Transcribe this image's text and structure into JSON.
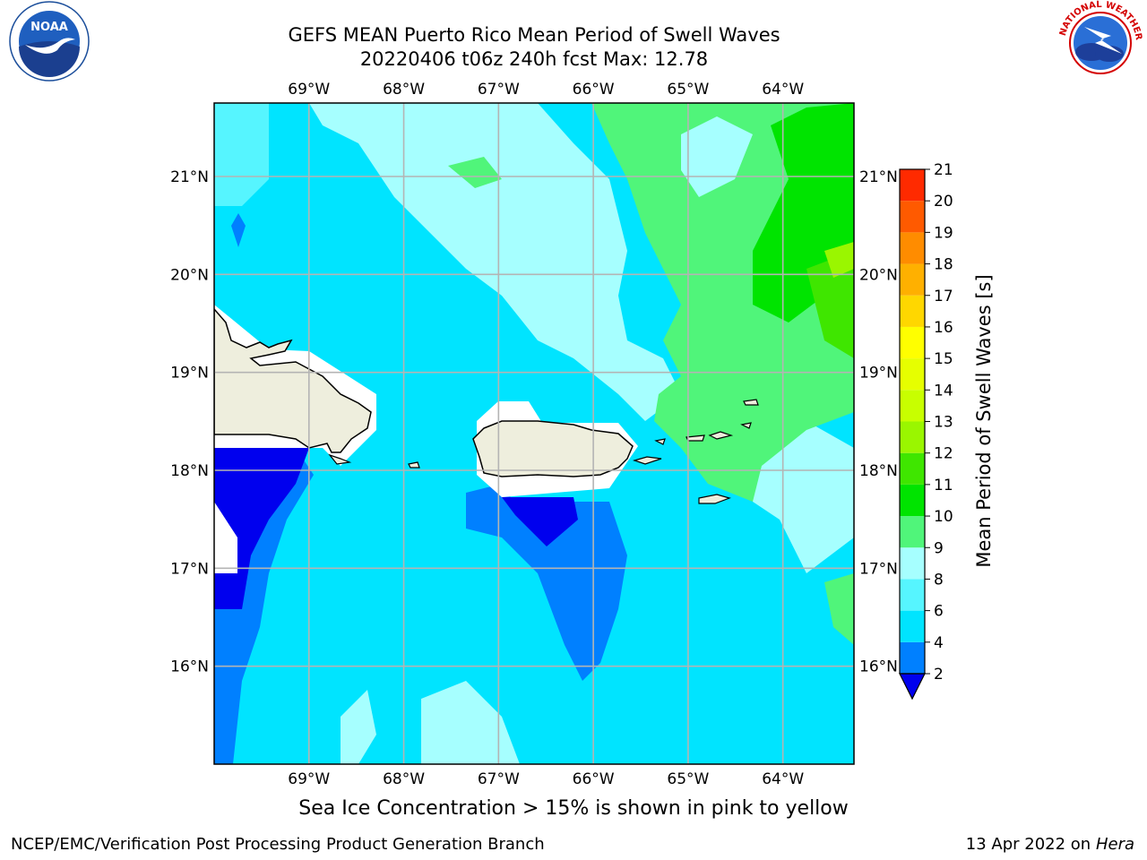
{
  "title_line1": "GEFS MEAN Puerto Rico Mean Period of Swell Waves",
  "title_line2": "20220406 t06z 240h fcst   Max: 12.78",
  "logos": {
    "left": {
      "name": "noaa-logo",
      "text": "NOAA",
      "ring_text": "NATIONAL OCEANIC AND ATMOSPHERIC ADMINISTRATION · U.S. DEPARTMENT OF COMMERCE"
    },
    "right": {
      "name": "nws-logo",
      "ring_text": "NATIONAL WEATHER SERVICE"
    }
  },
  "map": {
    "lon_ticks": [
      "69°W",
      "68°W",
      "67°W",
      "66°W",
      "65°W",
      "64°W"
    ],
    "lon_values": [
      -69,
      -68,
      -67,
      -66,
      -65,
      -64
    ],
    "lat_ticks": [
      "21°N",
      "20°N",
      "19°N",
      "18°N",
      "17°N",
      "16°N"
    ],
    "lat_values": [
      21,
      20,
      19,
      18,
      17,
      16
    ],
    "lon_range": [
      -70,
      -63.25
    ],
    "lat_range": [
      15.0,
      21.75
    ],
    "land_color": "#eeeedd"
  },
  "colorbar": {
    "label": "Mean Period of Swell Waves [s]",
    "levels": [
      "2",
      "4",
      "6",
      "8",
      "9",
      "10",
      "11",
      "12",
      "13",
      "14",
      "15",
      "16",
      "17",
      "18",
      "19",
      "20",
      "21"
    ],
    "colors": [
      "#0080ff",
      "#00e4ff",
      "#56f5ff",
      "#a6ffff",
      "#50f57a",
      "#00e400",
      "#3fe600",
      "#9af600",
      "#c8ff00",
      "#e6ff00",
      "#ffff00",
      "#ffd700",
      "#ffb000",
      "#ff8c00",
      "#ff5a00",
      "#ff2a00"
    ],
    "under_color": "#0000ee"
  },
  "note": "Sea Ice Concentration > 15% is shown in pink to yellow",
  "footer_left": "NCEP/EMC/Verification Post Processing Product Generation Branch",
  "footer_date": "13 Apr 2022 on",
  "footer_host": "Hera"
}
